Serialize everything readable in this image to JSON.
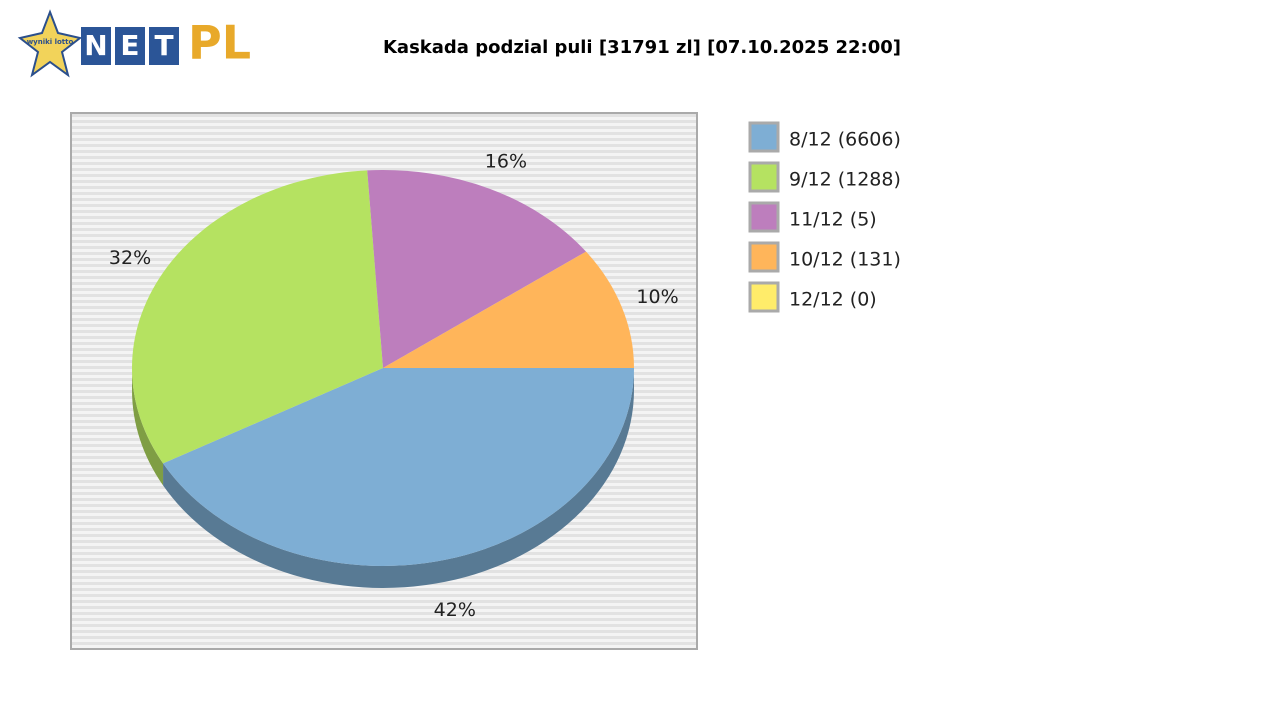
{
  "logo": {
    "badge": "wyniki lotto",
    "net": [
      "N",
      "E",
      "T"
    ],
    "pl": "PL"
  },
  "chart_data": {
    "type": "pie",
    "title": "Kaskada podzial puli [31791 zl] [07.10.2025 22:00]",
    "categories": [
      "8/12 (6606)",
      "9/12 (1288)",
      "11/12 (5)",
      "10/12 (131)",
      "12/12 (0)"
    ],
    "values": [
      42,
      32,
      16,
      10,
      0
    ],
    "value_labels": [
      "42%",
      "32%",
      "16%",
      "10%",
      null
    ],
    "colors": [
      "#7eaed4",
      "#b5e261",
      "#bd7ebd",
      "#ffb55a",
      "#ffec6a"
    ],
    "legend": "right"
  }
}
